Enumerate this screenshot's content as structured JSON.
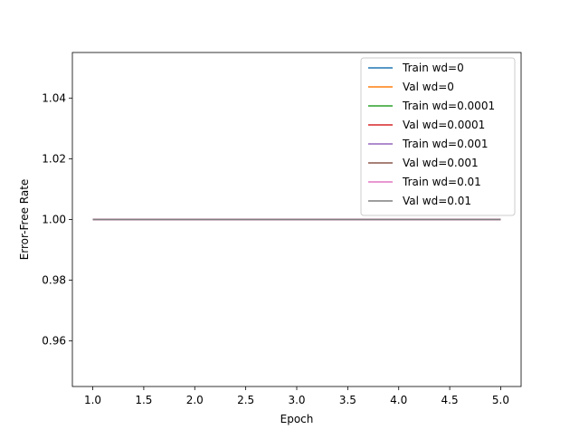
{
  "chart_data": {
    "type": "line",
    "title": "",
    "xlabel": "Epoch",
    "ylabel": "Error-Free Rate",
    "xlim": [
      0.8,
      5.2
    ],
    "ylim": [
      0.945,
      1.055
    ],
    "xticks": [
      1.0,
      1.5,
      2.0,
      2.5,
      3.0,
      3.5,
      4.0,
      4.5,
      5.0
    ],
    "xtick_labels": [
      "1.0",
      "1.5",
      "2.0",
      "2.5",
      "3.0",
      "3.5",
      "4.0",
      "4.5",
      "5.0"
    ],
    "yticks": [
      0.96,
      0.98,
      1.0,
      1.02,
      1.04
    ],
    "ytick_labels": [
      "0.96",
      "0.98",
      "1.00",
      "1.02",
      "1.04"
    ],
    "grid": false,
    "legend_position": "top-right",
    "x": [
      1,
      2,
      3,
      4,
      5
    ],
    "series": [
      {
        "name": "Train wd=0",
        "color": "#1f77b4",
        "values": [
          1,
          1,
          1,
          1,
          1
        ]
      },
      {
        "name": "Val wd=0",
        "color": "#ff7f0e",
        "values": [
          1,
          1,
          1,
          1,
          1
        ]
      },
      {
        "name": "Train wd=0.0001",
        "color": "#2ca02c",
        "values": [
          1,
          1,
          1,
          1,
          1
        ]
      },
      {
        "name": "Val wd=0.0001",
        "color": "#d62728",
        "values": [
          1,
          1,
          1,
          1,
          1
        ]
      },
      {
        "name": "Train wd=0.001",
        "color": "#9467bd",
        "values": [
          1,
          1,
          1,
          1,
          1
        ]
      },
      {
        "name": "Val wd=0.001",
        "color": "#8c564b",
        "values": [
          1,
          1,
          1,
          1,
          1
        ]
      },
      {
        "name": "Train wd=0.01",
        "color": "#e377c2",
        "values": [
          1,
          1,
          1,
          1,
          1
        ]
      },
      {
        "name": "Val wd=0.01",
        "color": "#7f7f7f",
        "values": [
          1,
          1,
          1,
          1,
          1
        ]
      }
    ]
  }
}
